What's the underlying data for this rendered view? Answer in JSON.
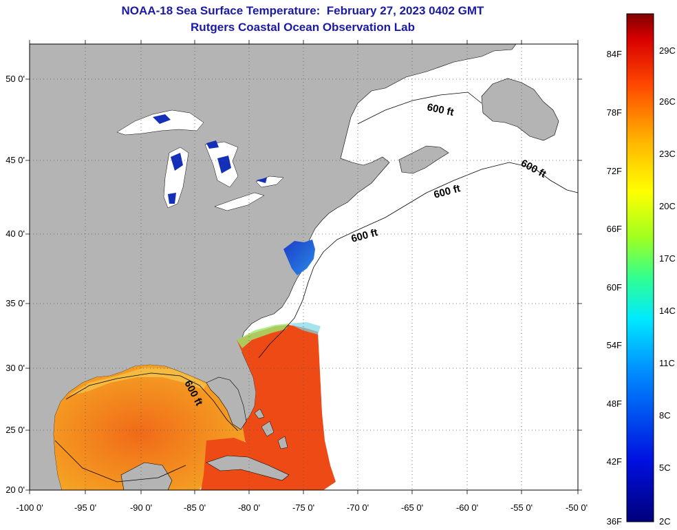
{
  "title_line1": "NOAA-18 Sea Surface Temperature:  February 27, 2023 0402 GMT",
  "title_line2": "Rutgers Coastal Ocean Observation Lab",
  "map": {
    "lon_ticks": [
      "-100 0'",
      "-95 0'",
      "-90 0'",
      "-85 0'",
      "-80 0'",
      "-75 0'",
      "-70 0'",
      "-65 0'",
      "-60 0'",
      "-55 0'",
      "-50 0'"
    ],
    "lat_ticks": [
      "20 0'",
      "25 0'",
      "30 0'",
      "35 0'",
      "40 0'",
      "45 0'",
      "50 0'"
    ],
    "contour_labels": [
      "600 ft",
      "600 ft",
      "600 ft",
      "600 ft",
      "600 ft"
    ],
    "colors": {
      "land": "#b4b4b4",
      "cloud": "#ffffff",
      "gulf_warm": "#f28a18",
      "stream_hot": "#ee4a16",
      "lake_ice": "#1530b8",
      "grid": "#555555"
    }
  },
  "colorbar": {
    "fahrenheit": [
      "84F",
      "78F",
      "72F",
      "66F",
      "60F",
      "54F",
      "48F",
      "42F",
      "36F"
    ],
    "celsius": [
      "29C",
      "26C",
      "23C",
      "20C",
      "17C",
      "14C",
      "11C",
      "8C",
      "5C",
      "2C"
    ],
    "range_f": [
      36,
      88
    ]
  }
}
